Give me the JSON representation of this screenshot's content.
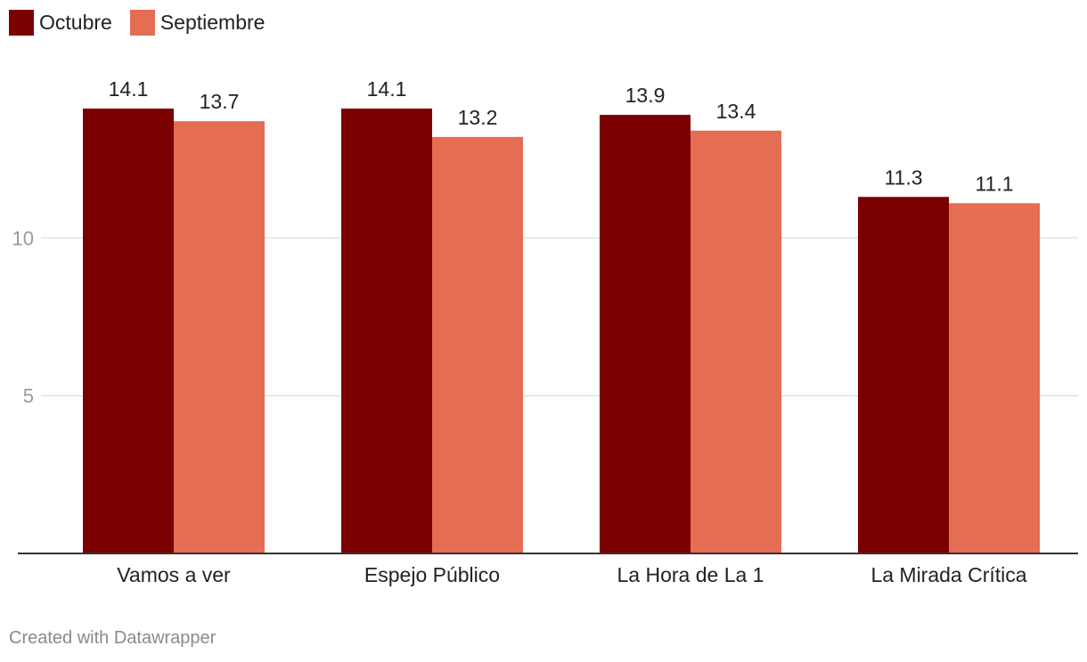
{
  "legend": {
    "items": [
      {
        "label": "Octubre",
        "color": "#7b0000"
      },
      {
        "label": "Septiembre",
        "color": "#e56d53"
      }
    ]
  },
  "footer": {
    "credit": "Created with Datawrapper"
  },
  "chart_data": {
    "type": "bar",
    "categories": [
      "Vamos a ver",
      "Espejo Público",
      "La Hora de La 1",
      "La Mirada Crítica"
    ],
    "series": [
      {
        "name": "Octubre",
        "color": "#7b0000",
        "values": [
          14.1,
          14.1,
          13.9,
          11.3
        ]
      },
      {
        "name": "Septiembre",
        "color": "#e56d53",
        "values": [
          13.7,
          13.2,
          13.4,
          11.1
        ]
      }
    ],
    "yticks": [
      5,
      10
    ],
    "ylim": [
      0,
      14.1
    ],
    "grid": true,
    "legend_position": "top-left",
    "data_labels": true
  }
}
